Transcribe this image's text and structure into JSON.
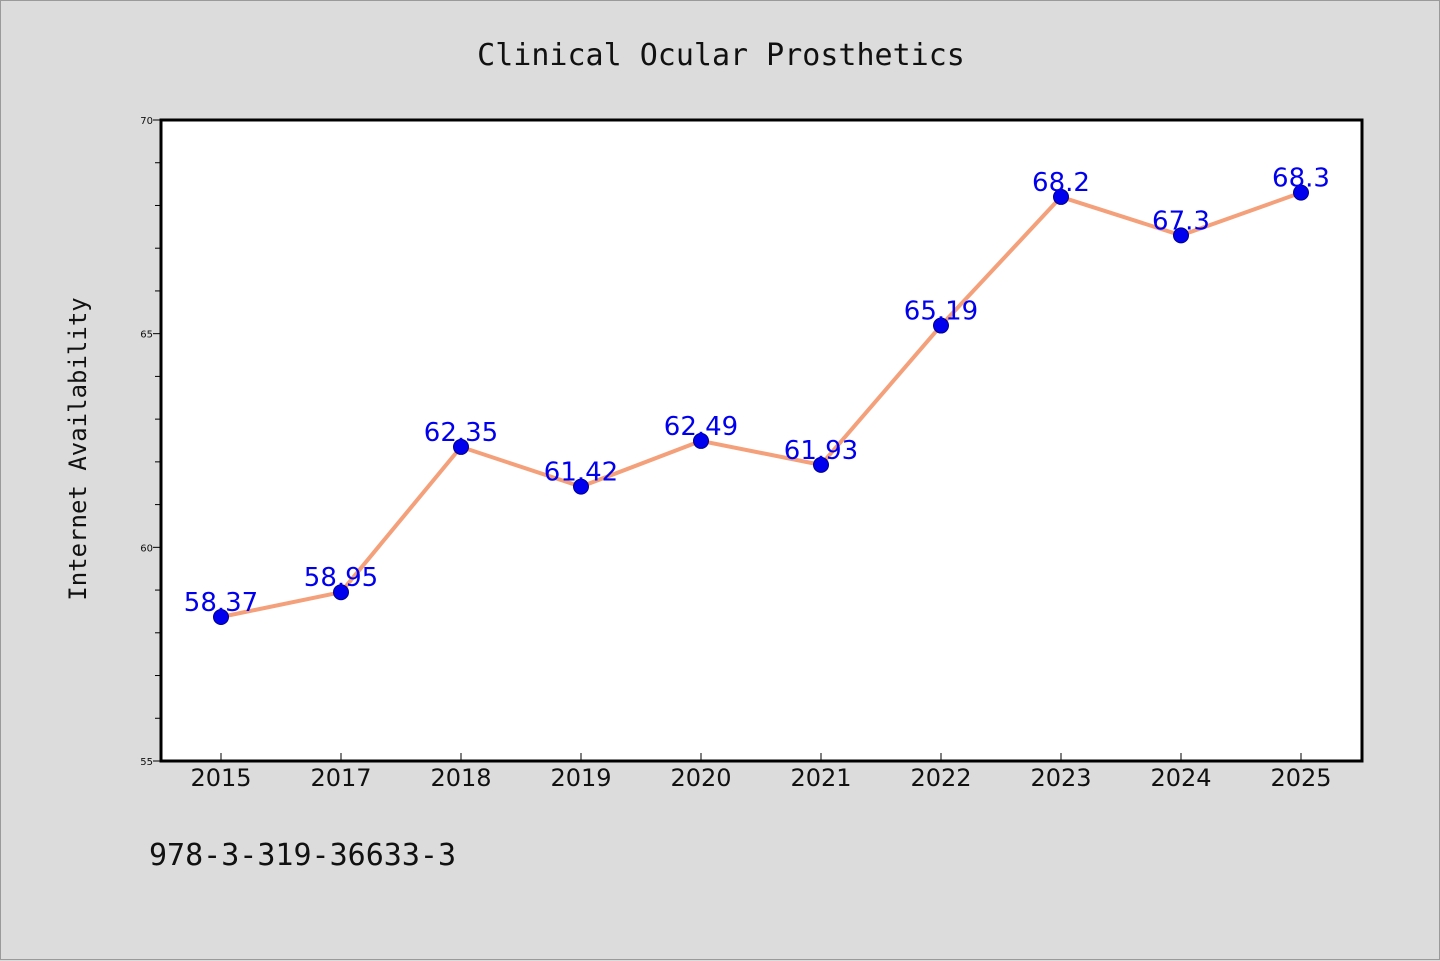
{
  "chart_data": {
    "type": "line",
    "title": "Clinical Ocular Prosthetics",
    "xlabel": "",
    "ylabel": "Internet Availability",
    "categories": [
      "2015",
      "2017",
      "2018",
      "2019",
      "2020",
      "2021",
      "2022",
      "2023",
      "2024",
      "2025"
    ],
    "series": [
      {
        "values": [
          58.37,
          58.95,
          62.35,
          61.42,
          62.49,
          61.93,
          65.19,
          68.2,
          67.3,
          68.3
        ],
        "data_labels": [
          "58.37",
          "58.95",
          "62.35",
          "61.42",
          "62.49",
          "61.93",
          "65.19",
          "68.2",
          "67.3",
          "68.3"
        ],
        "line_color": "#f4a07a",
        "marker_color": "#0000ee"
      }
    ],
    "ylim": [
      55,
      70
    ],
    "yticks": [
      "55",
      "60",
      "65",
      "70"
    ],
    "grid": false,
    "legend": "none"
  },
  "footer": {
    "isbn": "978-3-319-36633-3"
  }
}
